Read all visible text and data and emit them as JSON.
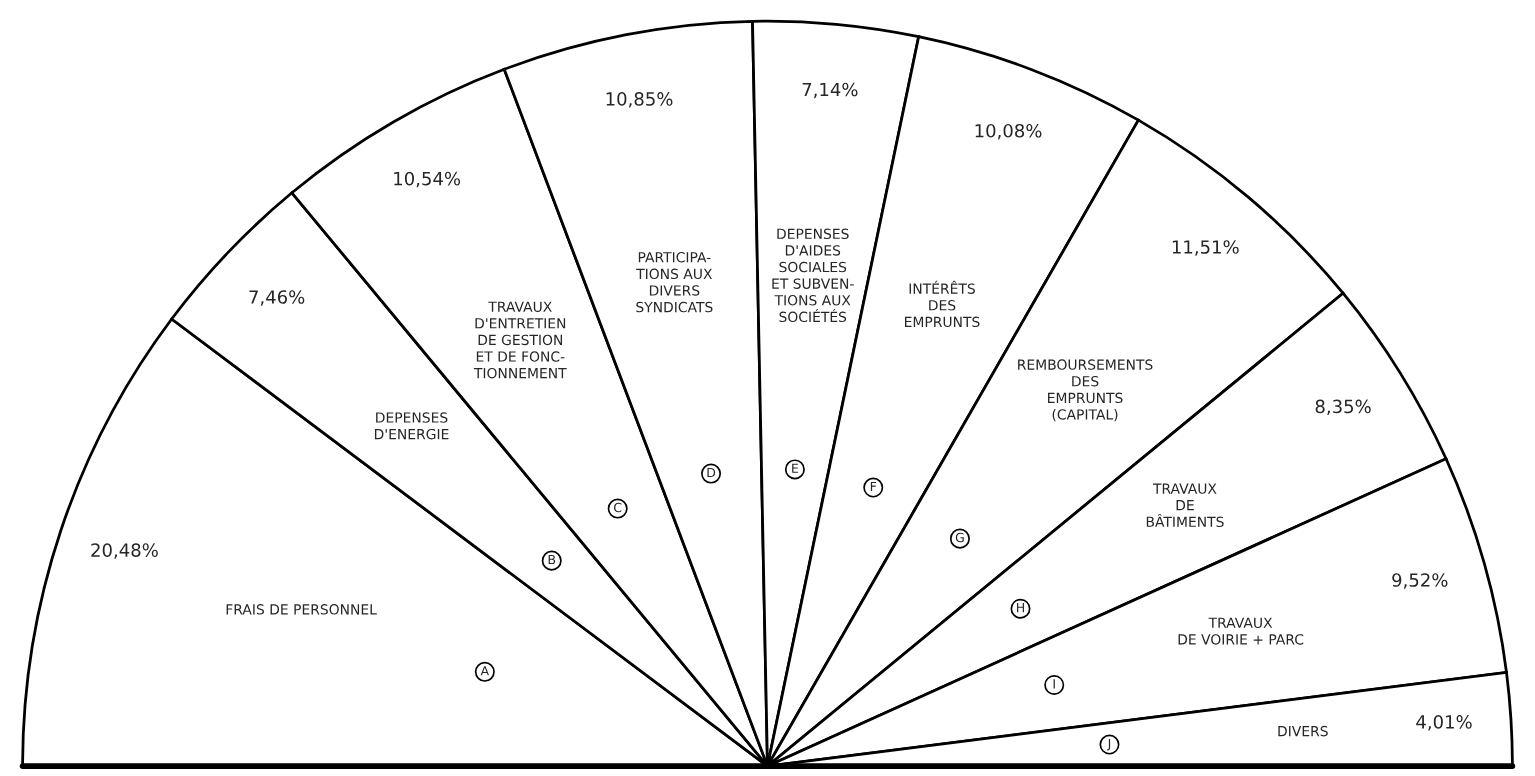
{
  "chart_data": {
    "type": "pie",
    "categories": [
      "FRAIS DE PERSONNEL",
      "DEPENSES\nD'ENERGIE",
      "TRAVAUX\nD'ENTRETIEN\nDE GESTION\nET DE FONC-\nTIONNEMENT",
      "PARTICIPA-\nTIONS AUX\nDIVERS\nSYNDICATS",
      "DEPENSES\nD'AIDES\nSOCIALES\nET SUBVEN-\nTIONS AUX\nSOCIÉTÉS",
      "INTÉRÊTS\nDES\nEMPRUNTS",
      "REMBOURSEMENTS\nDES\nEMPRUNTS\n(CAPITAL)",
      "TRAVAUX\nDE\nBÂTIMENTS",
      "TRAVAUX\nDE VOIRIE + PARC",
      "DIVERS"
    ],
    "values": [
      20.48,
      7.46,
      10.54,
      10.85,
      7.14,
      10.08,
      11.51,
      8.35,
      9.52,
      4.01
    ],
    "value_labels": [
      "20,48%",
      "7,46%",
      "10,54%",
      "10,85%",
      "7,14%",
      "10,08%",
      "11,51%",
      "8,35%",
      "9,52%",
      "4,01%"
    ],
    "colors": [
      "#ffffff",
      "#ffffff",
      "#ffffff",
      "#ffffff",
      "#ffffff",
      "#ffffff",
      "#ffffff",
      "#ffffff",
      "#ffffff",
      "#ffffff"
    ],
    "annotations": [
      "A",
      "B",
      "C",
      "D",
      "E",
      "F",
      "G",
      "H",
      "I",
      "J"
    ]
  }
}
